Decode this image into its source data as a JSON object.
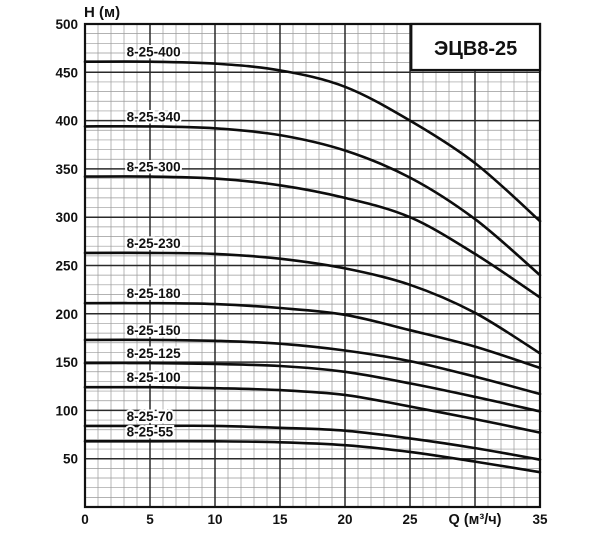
{
  "page": {
    "title": "ЭЦВ8-25"
  },
  "chart_data": {
    "type": "line",
    "title": "ЭЦВ8-25",
    "xlabel": "Q (м³/ч)",
    "ylabel": "Н (м)",
    "xlim": [
      0,
      35
    ],
    "ylim": [
      0,
      500
    ],
    "grid": true,
    "x_minor_step": 1,
    "x_major_step": 5,
    "y_minor_step": 10,
    "y_major_step": 50,
    "x_tick_values": [
      0,
      5,
      10,
      15,
      20,
      25,
      35
    ],
    "xlabel_at": 30,
    "y_tick_values": [
      500,
      450,
      400,
      350,
      300,
      250,
      200,
      150,
      100,
      50
    ],
    "legend": "inline curve labels above flat section of each curve",
    "x": [
      0,
      5,
      10,
      15,
      20,
      25,
      30,
      35
    ],
    "series": [
      {
        "name": "8-25-400",
        "values": [
          461,
          461,
          459,
          452,
          435,
          400,
          356,
          296
        ]
      },
      {
        "name": "8-25-340",
        "values": [
          394,
          394,
          392,
          385,
          369,
          341,
          298,
          240
        ]
      },
      {
        "name": "8-25-300",
        "values": [
          342,
          342,
          340,
          333,
          320,
          300,
          262,
          217
        ]
      },
      {
        "name": "8-25-230",
        "values": [
          263,
          263,
          262,
          257,
          247,
          230,
          201,
          159
        ]
      },
      {
        "name": "8-25-180",
        "values": [
          211,
          211,
          210,
          206,
          199,
          183,
          166,
          144
        ]
      },
      {
        "name": "8-25-150",
        "values": [
          173,
          173,
          172,
          169,
          162,
          151,
          135,
          117
        ]
      },
      {
        "name": "8-25-125",
        "values": [
          149,
          149,
          148,
          146,
          140,
          128,
          114,
          99
        ]
      },
      {
        "name": "8-25-100",
        "values": [
          124,
          124,
          123,
          121,
          116,
          104,
          91,
          77
        ]
      },
      {
        "name": "8-25-70",
        "values": [
          84,
          84,
          84,
          82,
          79,
          71,
          61,
          49
        ]
      },
      {
        "name": "8-25-55",
        "values": [
          68,
          68,
          68,
          67,
          64,
          57,
          47,
          36
        ]
      }
    ]
  },
  "colors": {
    "background": "#ffffff",
    "grid_minor": "#999999",
    "grid_major": "#2a2a2a",
    "border": "#111111",
    "curve": "#0d0d0d",
    "text": "#111111",
    "title_box_bg": "#ffffff"
  }
}
